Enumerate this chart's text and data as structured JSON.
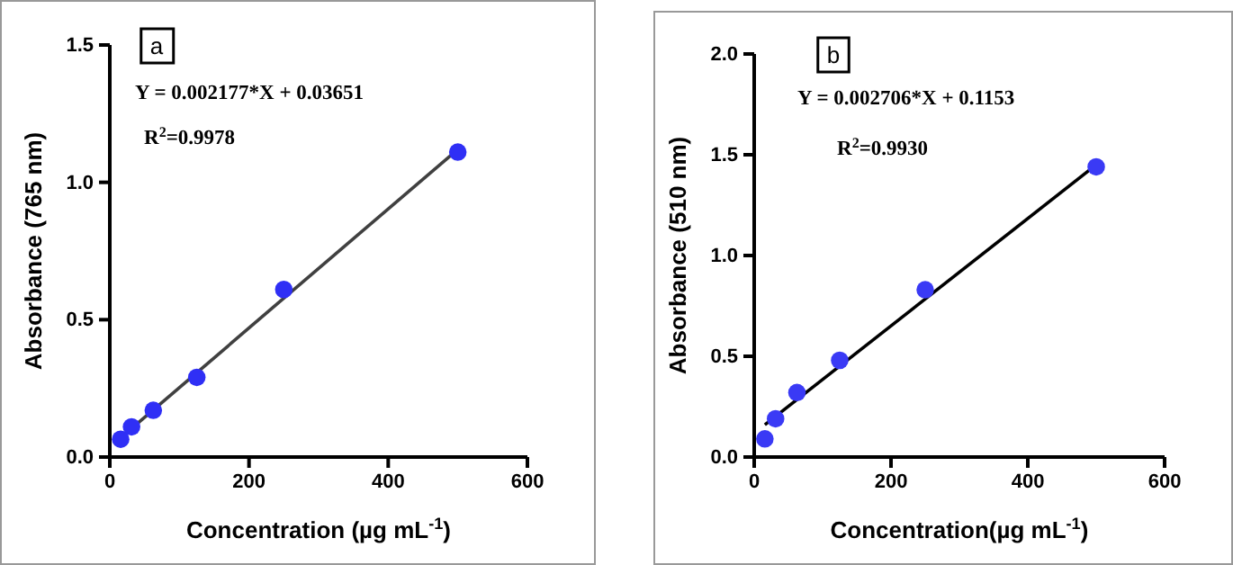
{
  "chart_data": [
    {
      "type": "scatter",
      "xlabel": "Concentration (µg mL$^{-1}$)",
      "ylabel": "Absorbance (765 nm)",
      "xlim": [
        0,
        600
      ],
      "xticks": [
        0,
        200,
        400,
        600
      ],
      "ylim": [
        0,
        1.5
      ],
      "yticks": [
        {
          "value": 0,
          "label": "0.0"
        },
        {
          "value": 0.5,
          "label": "0.5"
        },
        {
          "value": 1,
          "label": "1.0"
        },
        {
          "value": 1.5,
          "label": "1.5"
        }
      ],
      "grid": false,
      "series": [
        {
          "color": "#2f2ff5",
          "marker": "circle",
          "x": [
            15.6,
            31.25,
            62.5,
            125,
            250,
            500
          ],
          "values": [
            0.065,
            0.11,
            0.17,
            0.29,
            0.61,
            1.11
          ]
        },
        {
          "type": "line",
          "marker": "none",
          "color": "#404040",
          "x": [
            15.6,
            500
          ],
          "values": [
            0.07,
            1.12
          ]
        }
      ],
      "annotations": [
        "a",
        "Y = 0.002177*X + 0.03651",
        "R$^{2}$=0.9978"
      ]
    },
    {
      "type": "scatter",
      "xlabel": "Concentration(µg mL$^{-1}$)",
      "ylabel": "Absorbance (510 nm)",
      "xlim": [
        0,
        600
      ],
      "xticks": [
        0,
        200,
        400,
        600
      ],
      "ylim": [
        0,
        2
      ],
      "yticks": [
        {
          "value": 0,
          "label": "0.0"
        },
        {
          "value": 0.5,
          "label": "0.5"
        },
        {
          "value": 1,
          "label": "1.0"
        },
        {
          "value": 1.5,
          "label": "1.5"
        },
        {
          "value": 2,
          "label": "2.0"
        }
      ],
      "grid": false,
      "series": [
        {
          "color": "#3a3af5",
          "marker": "circle",
          "x": [
            15.6,
            31.25,
            62.5,
            125,
            250,
            500
          ],
          "values": [
            0.09,
            0.19,
            0.32,
            0.48,
            0.83,
            1.44
          ]
        },
        {
          "type": "line",
          "marker": "none",
          "color": "#000000",
          "x": [
            15.6,
            500
          ],
          "values": [
            0.16,
            1.45
          ]
        }
      ],
      "annotations": [
        "b",
        "Y = 0.002706*X + 0.1153",
        "R$^{2}$=0.9930"
      ]
    }
  ]
}
